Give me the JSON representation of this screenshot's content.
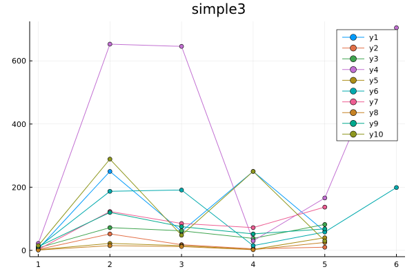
{
  "chart_data": {
    "type": "line",
    "title": "simple3",
    "xlabel": "",
    "ylabel": "",
    "xlim": [
      0.88,
      6.12
    ],
    "ylim": [
      -20,
      725
    ],
    "xticks": [
      1,
      2,
      3,
      4,
      5,
      6
    ],
    "yticks": [
      0,
      200,
      400,
      600
    ],
    "grid": true,
    "legend_position": "top-right",
    "series": [
      {
        "name": "y1",
        "color": "#009AFA",
        "points": [
          [
            1,
            5
          ],
          [
            2,
            250
          ],
          [
            3,
            60
          ],
          [
            4,
            250
          ],
          [
            5,
            60
          ]
        ]
      },
      {
        "name": "y2",
        "color": "#E26F46",
        "points": [
          [
            1,
            3
          ],
          [
            2,
            52
          ],
          [
            3,
            18
          ],
          [
            4,
            5
          ],
          [
            5,
            10
          ]
        ]
      },
      {
        "name": "y3",
        "color": "#3EA44E",
        "points": [
          [
            1,
            8
          ],
          [
            2,
            72
          ],
          [
            3,
            62
          ],
          [
            4,
            38
          ],
          [
            5,
            82
          ]
        ]
      },
      {
        "name": "y4",
        "color": "#C270D2",
        "points": [
          [
            1,
            22
          ],
          [
            2,
            653
          ],
          [
            3,
            646
          ],
          [
            4,
            30
          ],
          [
            5,
            166
          ],
          [
            6,
            705
          ]
        ]
      },
      {
        "name": "y5",
        "color": "#AC8E18",
        "points": [
          [
            1,
            2
          ],
          [
            2,
            22
          ],
          [
            3,
            15
          ],
          [
            4,
            3
          ],
          [
            5,
            40
          ]
        ]
      },
      {
        "name": "y6",
        "color": "#00A9AD",
        "points": [
          [
            1,
            10
          ],
          [
            2,
            187
          ],
          [
            3,
            191
          ],
          [
            4,
            15
          ],
          [
            5,
            58
          ],
          [
            6,
            199
          ]
        ]
      },
      {
        "name": "y7",
        "color": "#ED5E93",
        "points": [
          [
            1,
            3
          ],
          [
            2,
            123
          ],
          [
            3,
            85
          ],
          [
            4,
            72
          ],
          [
            5,
            137
          ]
        ]
      },
      {
        "name": "y8",
        "color": "#C68225",
        "points": [
          [
            1,
            1
          ],
          [
            2,
            15
          ],
          [
            3,
            12
          ],
          [
            4,
            2
          ],
          [
            5,
            25
          ]
        ]
      },
      {
        "name": "y9",
        "color": "#00A98D",
        "points": [
          [
            1,
            12
          ],
          [
            2,
            120
          ],
          [
            3,
            75
          ],
          [
            4,
            52
          ],
          [
            5,
            68
          ]
        ]
      },
      {
        "name": "y10",
        "color": "#8E971E",
        "points": [
          [
            1,
            15
          ],
          [
            2,
            289
          ],
          [
            3,
            48
          ],
          [
            4,
            250
          ],
          [
            5,
            30
          ]
        ]
      }
    ]
  }
}
